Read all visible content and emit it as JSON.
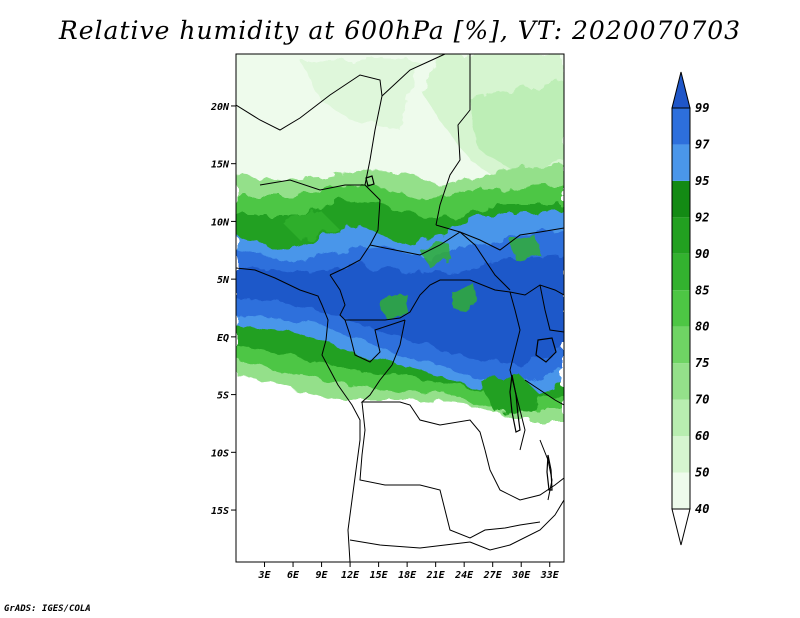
{
  "title": "Relative humidity at 600hPa [%], VT: 2020070703",
  "credit": "GrADS: IGES/COLA",
  "map": {
    "lat_labels": [
      {
        "lat": 20,
        "text": "20N"
      },
      {
        "lat": 15,
        "text": "15N"
      },
      {
        "lat": 10,
        "text": "10N"
      },
      {
        "lat": 5,
        "text": "5N"
      },
      {
        "lat": 0,
        "text": "EQ"
      },
      {
        "lat": -5,
        "text": "5S"
      },
      {
        "lat": -10,
        "text": "10S"
      },
      {
        "lat": -15,
        "text": "15S"
      }
    ],
    "lon_labels": [
      {
        "lon": 3,
        "text": "3E"
      },
      {
        "lon": 6,
        "text": "6E"
      },
      {
        "lon": 9,
        "text": "9E"
      },
      {
        "lon": 12,
        "text": "12E"
      },
      {
        "lon": 15,
        "text": "15E"
      },
      {
        "lon": 18,
        "text": "18E"
      },
      {
        "lon": 21,
        "text": "21E"
      },
      {
        "lon": 24,
        "text": "24E"
      },
      {
        "lon": 27,
        "text": "27E"
      },
      {
        "lon": 30,
        "text": "30E"
      },
      {
        "lon": 33,
        "text": "33E"
      }
    ],
    "lon_range": [
      0,
      34.5
    ],
    "lat_range": [
      -19.5,
      24.5
    ]
  },
  "colorbar": {
    "levels": [
      {
        "label": "40",
        "color": "#eefbec"
      },
      {
        "label": "50",
        "color": "#d6f5d0"
      },
      {
        "label": "60",
        "color": "#b8edb0"
      },
      {
        "label": "70",
        "color": "#94e08a"
      },
      {
        "label": "75",
        "color": "#6fd464"
      },
      {
        "label": "80",
        "color": "#4dc644"
      },
      {
        "label": "85",
        "color": "#33b22f"
      },
      {
        "label": "90",
        "color": "#22a020"
      },
      {
        "label": "92",
        "color": "#138a14"
      },
      {
        "label": "95",
        "color": "#4a96ea"
      },
      {
        "label": "97",
        "color": "#2d6fdc"
      },
      {
        "label": "99",
        "color": "#1f56c8"
      }
    ]
  }
}
